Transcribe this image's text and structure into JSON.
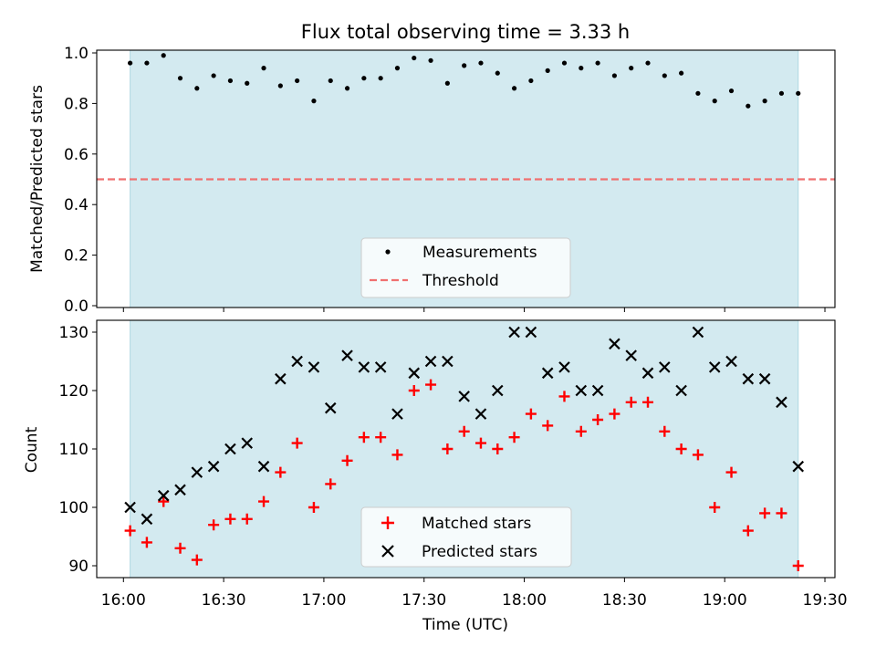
{
  "chart_data": [
    {
      "type": "scatter",
      "title": "Flux total observing time = 3.33 h",
      "xlabel": "",
      "ylabel": "Matched/Predicted stars",
      "ylim": [
        0.0,
        1.0
      ],
      "yticks": [
        "0.0",
        "0.2",
        "0.4",
        "0.6",
        "0.8",
        "1.0"
      ],
      "xlim": [
        "15:52",
        "19:33"
      ],
      "shaded_range": [
        "16:02",
        "19:22"
      ],
      "shade_color": "#d3eaf0",
      "threshold": 0.5,
      "threshold_color": "#f07070",
      "legend_position": "bottom-center",
      "series": [
        {
          "name": "Measurements",
          "marker": "dot",
          "color": "#000000",
          "x": [
            "16:02",
            "16:07",
            "16:12",
            "16:17",
            "16:22",
            "16:27",
            "16:32",
            "16:37",
            "16:42",
            "16:47",
            "16:52",
            "16:57",
            "17:02",
            "17:07",
            "17:12",
            "17:17",
            "17:22",
            "17:27",
            "17:32",
            "17:37",
            "17:42",
            "17:47",
            "17:52",
            "17:57",
            "18:02",
            "18:07",
            "18:12",
            "18:17",
            "18:22",
            "18:27",
            "18:32",
            "18:37",
            "18:42",
            "18:47",
            "18:52",
            "18:57",
            "19:02",
            "19:07",
            "19:12",
            "19:17",
            "19:22"
          ],
          "y": [
            0.96,
            0.96,
            0.99,
            0.9,
            0.86,
            0.91,
            0.89,
            0.88,
            0.94,
            0.87,
            0.89,
            0.81,
            0.89,
            0.86,
            0.9,
            0.9,
            0.94,
            0.98,
            0.97,
            0.88,
            0.95,
            0.96,
            0.92,
            0.86,
            0.89,
            0.93,
            0.96,
            0.94,
            0.96,
            0.91,
            0.94,
            0.96,
            0.91,
            0.92,
            0.84,
            0.81,
            0.85,
            0.79,
            0.81,
            0.84,
            0.84
          ]
        },
        {
          "name": "Threshold",
          "marker": "dashed-line",
          "color": "#f07070"
        }
      ]
    },
    {
      "type": "scatter",
      "title": "",
      "xlabel": "Time (UTC)",
      "ylabel": "Count",
      "ylim": [
        88,
        132
      ],
      "yticks": [
        "90",
        "100",
        "110",
        "120",
        "130"
      ],
      "xlim": [
        "15:52",
        "19:33"
      ],
      "xticks": [
        "16:00",
        "16:30",
        "17:00",
        "17:30",
        "18:00",
        "18:30",
        "19:00",
        "19:30"
      ],
      "shaded_range": [
        "16:02",
        "19:22"
      ],
      "shade_color": "#d3eaf0",
      "legend_position": "bottom-center",
      "series": [
        {
          "name": "Matched stars",
          "marker": "plus",
          "color": "#ff0000",
          "x": [
            "16:02",
            "16:07",
            "16:12",
            "16:17",
            "16:22",
            "16:27",
            "16:32",
            "16:37",
            "16:42",
            "16:47",
            "16:52",
            "16:57",
            "17:02",
            "17:07",
            "17:12",
            "17:17",
            "17:22",
            "17:27",
            "17:32",
            "17:37",
            "17:42",
            "17:47",
            "17:52",
            "17:57",
            "18:02",
            "18:07",
            "18:12",
            "18:17",
            "18:22",
            "18:27",
            "18:32",
            "18:37",
            "18:42",
            "18:47",
            "18:52",
            "18:57",
            "19:02",
            "19:07",
            "19:12",
            "19:17",
            "19:22"
          ],
          "y": [
            96,
            94,
            101,
            93,
            91,
            97,
            98,
            98,
            101,
            106,
            111,
            100,
            104,
            108,
            112,
            112,
            109,
            120,
            121,
            110,
            113,
            111,
            110,
            112,
            116,
            114,
            119,
            113,
            115,
            116,
            118,
            118,
            113,
            110,
            109,
            100,
            106,
            96,
            99,
            99,
            90
          ]
        },
        {
          "name": "Predicted stars",
          "marker": "x",
          "color": "#000000",
          "x": [
            "16:02",
            "16:07",
            "16:12",
            "16:17",
            "16:22",
            "16:27",
            "16:32",
            "16:37",
            "16:42",
            "16:47",
            "16:52",
            "16:57",
            "17:02",
            "17:07",
            "17:12",
            "17:17",
            "17:22",
            "17:27",
            "17:32",
            "17:37",
            "17:42",
            "17:47",
            "17:52",
            "17:57",
            "18:02",
            "18:07",
            "18:12",
            "18:17",
            "18:22",
            "18:27",
            "18:32",
            "18:37",
            "18:42",
            "18:47",
            "18:52",
            "18:57",
            "19:02",
            "19:07",
            "19:12",
            "19:17",
            "19:22"
          ],
          "y": [
            100,
            98,
            102,
            103,
            106,
            107,
            110,
            111,
            107,
            122,
            125,
            124,
            117,
            126,
            124,
            124,
            116,
            123,
            125,
            125,
            119,
            116,
            120,
            130,
            130,
            123,
            124,
            120,
            120,
            128,
            126,
            123,
            124,
            120,
            130,
            124,
            125,
            122,
            122,
            118,
            107
          ]
        }
      ]
    }
  ]
}
